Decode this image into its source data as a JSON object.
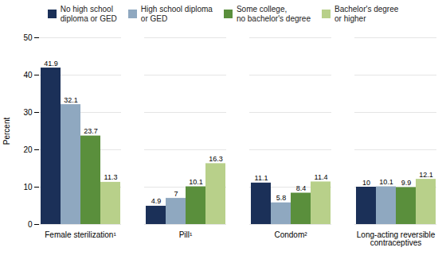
{
  "chart_data": {
    "type": "bar",
    "categories": [
      "Female sterilization¹",
      "Pill¹",
      "Condom²",
      "Long-acting reversible\ncontraceptives"
    ],
    "series": [
      {
        "name": "No high school\ndiploma or GED",
        "color": "#1b3058",
        "values": [
          41.9,
          4.9,
          11.1,
          10.0
        ]
      },
      {
        "name": "High school diploma\nor GED",
        "color": "#8fa8c0",
        "values": [
          32.1,
          7.0,
          5.8,
          10.1
        ]
      },
      {
        "name": "Some college,\nno bachelor's degree",
        "color": "#5a8f3c",
        "values": [
          23.7,
          10.1,
          8.4,
          9.9
        ]
      },
      {
        "name": "Bachelor's degree\nor higher",
        "color": "#b8d08a",
        "values": [
          11.3,
          16.3,
          11.4,
          12.1
        ]
      }
    ],
    "ylabel": "Percent",
    "ylim": [
      0,
      50
    ],
    "yticks": [
      0,
      10,
      20,
      30,
      40,
      50
    ],
    "grid": true,
    "data_labels": true,
    "legend": "top"
  }
}
